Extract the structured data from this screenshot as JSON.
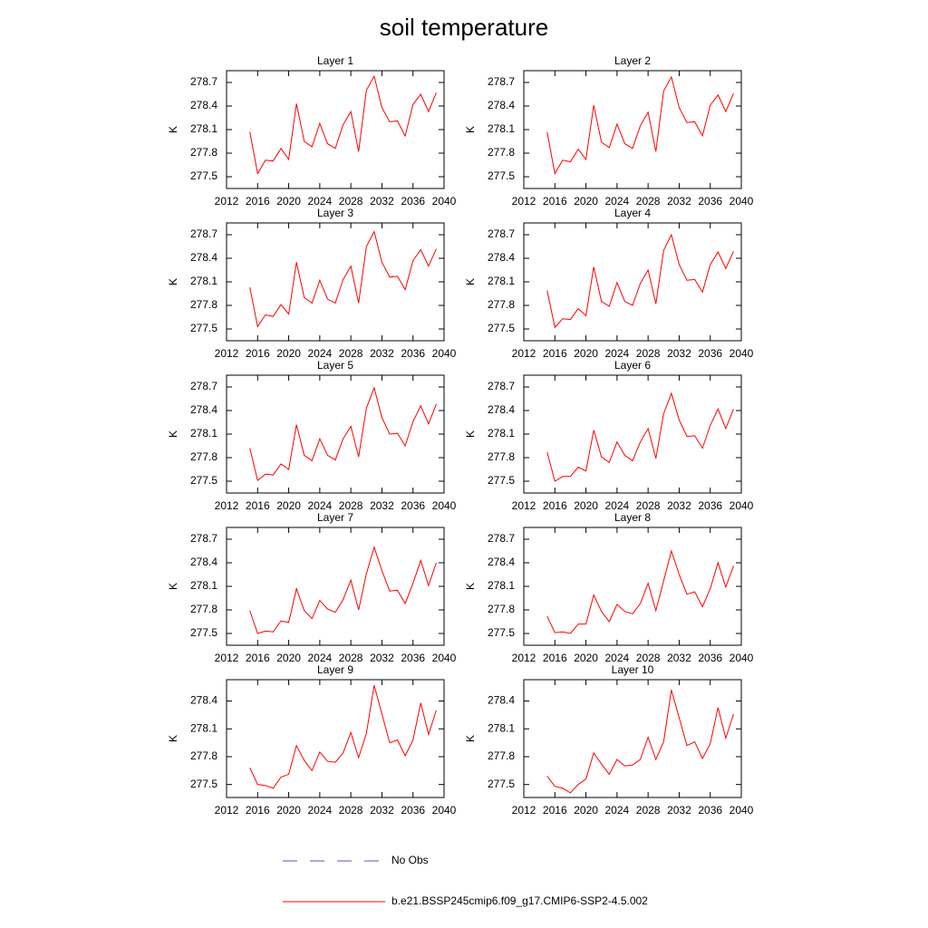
{
  "title": "soil temperature",
  "legend": {
    "obs": {
      "name": "No Obs",
      "color": "#5555bb"
    }
  },
  "chart_data": [
    {
      "type": "line",
      "title": "Layer 1",
      "ylabel": "K",
      "x": [
        2015,
        2016,
        2017,
        2018,
        2019,
        2020,
        2021,
        2022,
        2023,
        2024,
        2025,
        2026,
        2027,
        2028,
        2029,
        2030,
        2031,
        2032,
        2033,
        2034,
        2035,
        2036,
        2037,
        2038,
        2039
      ],
      "series": [
        {
          "name": "b.e21.BSSP245cmip6.f09_g17.CMIP6-SSP2-4.5.002",
          "color": "#ff0000",
          "values": [
            278.07,
            277.54,
            277.71,
            277.7,
            277.86,
            277.72,
            278.43,
            277.95,
            277.88,
            278.18,
            277.92,
            277.86,
            278.16,
            278.33,
            277.82,
            278.6,
            278.78,
            278.38,
            278.2,
            278.21,
            278.02,
            278.42,
            278.55,
            278.33,
            278.57
          ]
        }
      ],
      "xlim": [
        2012,
        2040
      ],
      "ylim": [
        277.35,
        278.85
      ],
      "xticks": [
        2012,
        2016,
        2020,
        2024,
        2028,
        2032,
        2036,
        2040
      ],
      "yticks": [
        277.5,
        277.8,
        278.1,
        278.4,
        278.7
      ]
    },
    {
      "type": "line",
      "title": "Layer 2",
      "ylabel": "K",
      "x": [
        2015,
        2016,
        2017,
        2018,
        2019,
        2020,
        2021,
        2022,
        2023,
        2024,
        2025,
        2026,
        2027,
        2028,
        2029,
        2030,
        2031,
        2032,
        2033,
        2034,
        2035,
        2036,
        2037,
        2038,
        2039
      ],
      "series": [
        {
          "name": "b.e21.BSSP245cmip6.f09_g17.CMIP6-SSP2-4.5.002",
          "color": "#ff0000",
          "values": [
            278.07,
            277.54,
            277.71,
            277.69,
            277.85,
            277.72,
            278.41,
            277.94,
            277.87,
            278.17,
            277.92,
            277.86,
            278.15,
            278.32,
            277.82,
            278.59,
            278.77,
            278.38,
            278.19,
            278.2,
            278.02,
            278.41,
            278.54,
            278.33,
            278.56
          ]
        }
      ],
      "xlim": [
        2012,
        2040
      ],
      "ylim": [
        277.35,
        278.85
      ],
      "xticks": [
        2012,
        2016,
        2020,
        2024,
        2028,
        2032,
        2036,
        2040
      ],
      "yticks": [
        277.5,
        277.8,
        278.1,
        278.4,
        278.7
      ]
    },
    {
      "type": "line",
      "title": "Layer 3",
      "ylabel": "K",
      "x": [
        2015,
        2016,
        2017,
        2018,
        2019,
        2020,
        2021,
        2022,
        2023,
        2024,
        2025,
        2026,
        2027,
        2028,
        2029,
        2030,
        2031,
        2032,
        2033,
        2034,
        2035,
        2036,
        2037,
        2038,
        2039
      ],
      "series": [
        {
          "name": "b.e21.BSSP245cmip6.f09_g17.CMIP6-SSP2-4.5.002",
          "color": "#ff0000",
          "values": [
            278.03,
            277.53,
            277.68,
            277.66,
            277.81,
            277.69,
            278.35,
            277.9,
            277.83,
            278.12,
            277.88,
            277.83,
            278.13,
            278.3,
            277.83,
            278.55,
            278.74,
            278.35,
            278.16,
            278.17,
            278.0,
            278.37,
            278.51,
            278.3,
            278.52
          ]
        }
      ],
      "xlim": [
        2012,
        2040
      ],
      "ylim": [
        277.35,
        278.85
      ],
      "xticks": [
        2012,
        2016,
        2020,
        2024,
        2028,
        2032,
        2036,
        2040
      ],
      "yticks": [
        277.5,
        277.8,
        278.1,
        278.4,
        278.7
      ]
    },
    {
      "type": "line",
      "title": "Layer 4",
      "ylabel": "K",
      "x": [
        2015,
        2016,
        2017,
        2018,
        2019,
        2020,
        2021,
        2022,
        2023,
        2024,
        2025,
        2026,
        2027,
        2028,
        2029,
        2030,
        2031,
        2032,
        2033,
        2034,
        2035,
        2036,
        2037,
        2038,
        2039
      ],
      "series": [
        {
          "name": "b.e21.BSSP245cmip6.f09_g17.CMIP6-SSP2-4.5.002",
          "color": "#ff0000",
          "values": [
            277.99,
            277.52,
            277.63,
            277.62,
            277.76,
            277.67,
            278.29,
            277.85,
            277.79,
            278.09,
            277.85,
            277.8,
            278.08,
            278.25,
            277.82,
            278.5,
            278.7,
            278.32,
            278.12,
            278.13,
            277.97,
            278.32,
            278.48,
            278.27,
            278.49
          ]
        }
      ],
      "xlim": [
        2012,
        2040
      ],
      "ylim": [
        277.35,
        278.85
      ],
      "xticks": [
        2012,
        2016,
        2020,
        2024,
        2028,
        2032,
        2036,
        2040
      ],
      "yticks": [
        277.5,
        277.8,
        278.1,
        278.4,
        278.7
      ]
    },
    {
      "type": "line",
      "title": "Layer 5",
      "ylabel": "K",
      "x": [
        2015,
        2016,
        2017,
        2018,
        2019,
        2020,
        2021,
        2022,
        2023,
        2024,
        2025,
        2026,
        2027,
        2028,
        2029,
        2030,
        2031,
        2032,
        2033,
        2034,
        2035,
        2036,
        2037,
        2038,
        2039
      ],
      "series": [
        {
          "name": "b.e21.BSSP245cmip6.f09_g17.CMIP6-SSP2-4.5.002",
          "color": "#ff0000",
          "values": [
            277.92,
            277.51,
            277.59,
            277.58,
            277.72,
            277.65,
            278.22,
            277.83,
            277.76,
            278.04,
            277.83,
            277.77,
            278.04,
            278.2,
            277.81,
            278.43,
            278.69,
            278.31,
            278.1,
            278.11,
            277.95,
            278.26,
            278.46,
            278.23,
            278.48
          ]
        }
      ],
      "xlim": [
        2012,
        2040
      ],
      "ylim": [
        277.35,
        278.85
      ],
      "xticks": [
        2012,
        2016,
        2020,
        2024,
        2028,
        2032,
        2036,
        2040
      ],
      "yticks": [
        277.5,
        277.8,
        278.1,
        278.4,
        278.7
      ]
    },
    {
      "type": "line",
      "title": "Layer 6",
      "ylabel": "K",
      "x": [
        2015,
        2016,
        2017,
        2018,
        2019,
        2020,
        2021,
        2022,
        2023,
        2024,
        2025,
        2026,
        2027,
        2028,
        2029,
        2030,
        2031,
        2032,
        2033,
        2034,
        2035,
        2036,
        2037,
        2038,
        2039
      ],
      "series": [
        {
          "name": "b.e21.BSSP245cmip6.f09_g17.CMIP6-SSP2-4.5.002",
          "color": "#ff0000",
          "values": [
            277.87,
            277.5,
            277.56,
            277.56,
            277.68,
            277.63,
            278.15,
            277.81,
            277.74,
            278.0,
            277.83,
            277.76,
            278.0,
            278.17,
            277.79,
            278.36,
            278.62,
            278.28,
            278.07,
            278.08,
            277.92,
            278.21,
            278.42,
            278.17,
            278.42
          ]
        }
      ],
      "xlim": [
        2012,
        2040
      ],
      "ylim": [
        277.35,
        278.85
      ],
      "xticks": [
        2012,
        2016,
        2020,
        2024,
        2028,
        2032,
        2036,
        2040
      ],
      "yticks": [
        277.5,
        277.8,
        278.1,
        278.4,
        278.7
      ]
    },
    {
      "type": "line",
      "title": "Layer 7",
      "ylabel": "K",
      "x": [
        2015,
        2016,
        2017,
        2018,
        2019,
        2020,
        2021,
        2022,
        2023,
        2024,
        2025,
        2026,
        2027,
        2028,
        2029,
        2030,
        2031,
        2032,
        2033,
        2034,
        2035,
        2036,
        2037,
        2038,
        2039
      ],
      "series": [
        {
          "name": "b.e21.BSSP245cmip6.f09_g17.CMIP6-SSP2-4.5.002",
          "color": "#ff0000",
          "values": [
            277.79,
            277.5,
            277.53,
            277.52,
            277.66,
            277.64,
            278.07,
            277.79,
            277.69,
            277.92,
            277.81,
            277.77,
            277.93,
            278.18,
            277.8,
            278.26,
            278.6,
            278.3,
            278.04,
            278.05,
            277.88,
            278.14,
            278.43,
            278.11,
            278.4
          ]
        }
      ],
      "xlim": [
        2012,
        2040
      ],
      "ylim": [
        277.35,
        278.85
      ],
      "xticks": [
        2012,
        2016,
        2020,
        2024,
        2028,
        2032,
        2036,
        2040
      ],
      "yticks": [
        277.5,
        277.8,
        278.1,
        278.4,
        278.7
      ]
    },
    {
      "type": "line",
      "title": "Layer 8",
      "ylabel": "K",
      "x": [
        2015,
        2016,
        2017,
        2018,
        2019,
        2020,
        2021,
        2022,
        2023,
        2024,
        2025,
        2026,
        2027,
        2028,
        2029,
        2030,
        2031,
        2032,
        2033,
        2034,
        2035,
        2036,
        2037,
        2038,
        2039
      ],
      "series": [
        {
          "name": "b.e21.BSSP245cmip6.f09_g17.CMIP6-SSP2-4.5.002",
          "color": "#ff0000",
          "values": [
            277.72,
            277.51,
            277.52,
            277.5,
            277.62,
            277.62,
            277.99,
            277.78,
            277.65,
            277.87,
            277.78,
            277.75,
            277.88,
            278.14,
            277.79,
            278.17,
            278.55,
            278.25,
            278.0,
            278.03,
            277.84,
            278.07,
            278.4,
            278.09,
            278.36
          ]
        }
      ],
      "xlim": [
        2012,
        2040
      ],
      "ylim": [
        277.35,
        278.85
      ],
      "xticks": [
        2012,
        2016,
        2020,
        2024,
        2028,
        2032,
        2036,
        2040
      ],
      "yticks": [
        277.5,
        277.8,
        278.1,
        278.4,
        278.7
      ]
    },
    {
      "type": "line",
      "title": "Layer 9",
      "ylabel": "K",
      "x": [
        2015,
        2016,
        2017,
        2018,
        2019,
        2020,
        2021,
        2022,
        2023,
        2024,
        2025,
        2026,
        2027,
        2028,
        2029,
        2030,
        2031,
        2032,
        2033,
        2034,
        2035,
        2036,
        2037,
        2038,
        2039
      ],
      "series": [
        {
          "name": "b.e21.BSSP245cmip6.f09_g17.CMIP6-SSP2-4.5.002",
          "color": "#ff0000",
          "values": [
            277.68,
            277.5,
            277.49,
            277.46,
            277.58,
            277.61,
            277.92,
            277.76,
            277.65,
            277.85,
            277.75,
            277.74,
            277.84,
            278.06,
            277.79,
            278.05,
            278.57,
            278.26,
            277.95,
            277.98,
            277.81,
            277.98,
            278.38,
            278.04,
            278.3
          ]
        }
      ],
      "xlim": [
        2012,
        2040
      ],
      "ylim": [
        277.36,
        278.63
      ],
      "xticks": [
        2012,
        2016,
        2020,
        2024,
        2028,
        2032,
        2036,
        2040
      ],
      "yticks": [
        277.5,
        277.8,
        278.1,
        278.4
      ]
    },
    {
      "type": "line",
      "title": "Layer 10",
      "ylabel": "K",
      "x": [
        2015,
        2016,
        2017,
        2018,
        2019,
        2020,
        2021,
        2022,
        2023,
        2024,
        2025,
        2026,
        2027,
        2028,
        2029,
        2030,
        2031,
        2032,
        2033,
        2034,
        2035,
        2036,
        2037,
        2038,
        2039
      ],
      "series": [
        {
          "name": "b.e21.BSSP245cmip6.f09_g17.CMIP6-SSP2-4.5.002",
          "color": "#ff0000",
          "values": [
            277.59,
            277.48,
            277.46,
            277.41,
            277.5,
            277.56,
            277.84,
            277.72,
            277.61,
            277.77,
            277.7,
            277.71,
            277.77,
            278.01,
            277.77,
            277.96,
            278.52,
            278.22,
            277.92,
            277.96,
            277.78,
            277.94,
            278.33,
            278.0,
            278.26
          ]
        }
      ],
      "xlim": [
        2012,
        2040
      ],
      "ylim": [
        277.36,
        278.63
      ],
      "xticks": [
        2012,
        2016,
        2020,
        2024,
        2028,
        2032,
        2036,
        2040
      ],
      "yticks": [
        277.5,
        277.8,
        278.1,
        278.4
      ]
    }
  ]
}
